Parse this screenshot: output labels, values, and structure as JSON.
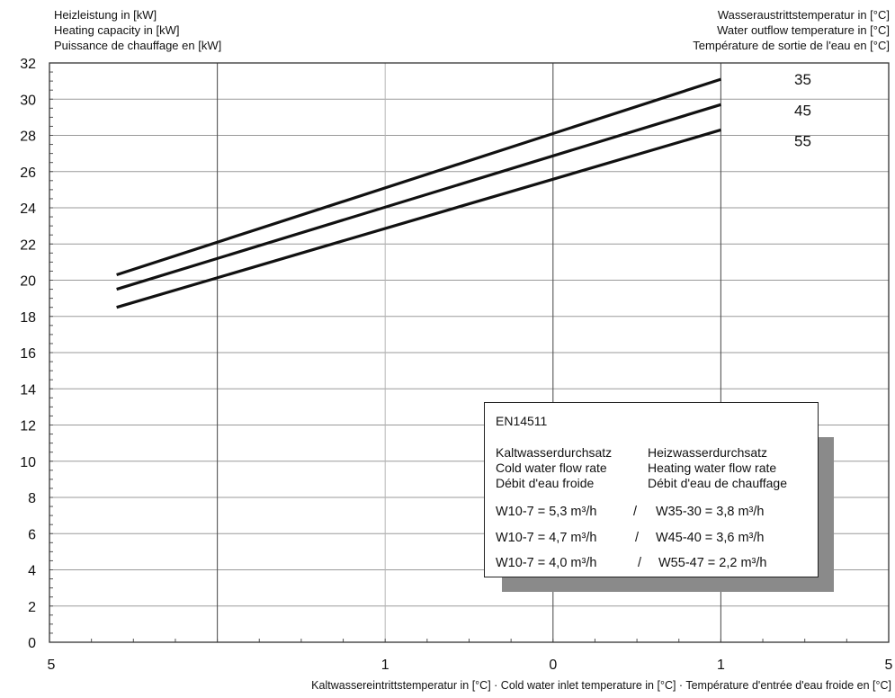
{
  "header": {
    "left_lines": [
      "Heizleistung in [kW]",
      "Heating capacity in [kW]",
      "Puissance de chauffage en [kW]"
    ],
    "right_lines": [
      "Wasseraustrittstemperatur in [°C]",
      "Water outflow temperature in [°C]",
      "Température de sortie de l'eau en [°C]"
    ]
  },
  "footer": {
    "xlabel": "Kaltwassereintrittstemperatur in [°C] · Cold water inlet temperature in [°C] · Température d'entrée d'eau froide en [°C]"
  },
  "legend": {
    "standard": "EN14511",
    "left_header": [
      "Kaltwasserdurchsatz",
      "Cold water flow rate",
      "Débit d'eau froide"
    ],
    "right_header": [
      "Heizwasserdurchsatz",
      "Heating water flow rate",
      "Débit d'eau de chauffage"
    ],
    "rows": [
      {
        "cold": "W10-7 = 5,3 m³/h",
        "sep": "/",
        "heat": "W35-30 = 3,8 m³/h"
      },
      {
        "cold": "W10-7 = 4,7 m³/h",
        "sep": "/",
        "heat": "W45-40 = 3,6 m³/h"
      },
      {
        "cold": "W10-7 = 4,0 m³/h",
        "sep": "/",
        "heat": "W55-47 = 2,2 m³/h"
      }
    ]
  },
  "chart_data": {
    "type": "line",
    "title": "",
    "xlabel": "Kaltwassereintrittstemperatur in [°C] · Cold water inlet temperature in [°C] · Température d'entrée d'eau froide en [°C]",
    "ylabel": "Heizleistung in [kW] / Heating capacity in [kW] / Puissance de chauffage en [kW]",
    "x_tick_labels": [
      "5",
      "1",
      "0",
      "1",
      "5"
    ],
    "x": [
      0.4,
      4.0
    ],
    "ylim": [
      0,
      32
    ],
    "yticks": [
      0,
      2,
      4,
      6,
      8,
      10,
      12,
      14,
      16,
      18,
      20,
      22,
      24,
      26,
      28,
      30,
      32
    ],
    "grid": true,
    "series": [
      {
        "name": "35",
        "values": [
          20.3,
          31.1
        ]
      },
      {
        "name": "45",
        "values": [
          19.5,
          29.7
        ]
      },
      {
        "name": "55",
        "values": [
          18.5,
          28.3
        ]
      }
    ],
    "series_labels_placement": "right of lines",
    "legend_position": "bottom-right"
  }
}
